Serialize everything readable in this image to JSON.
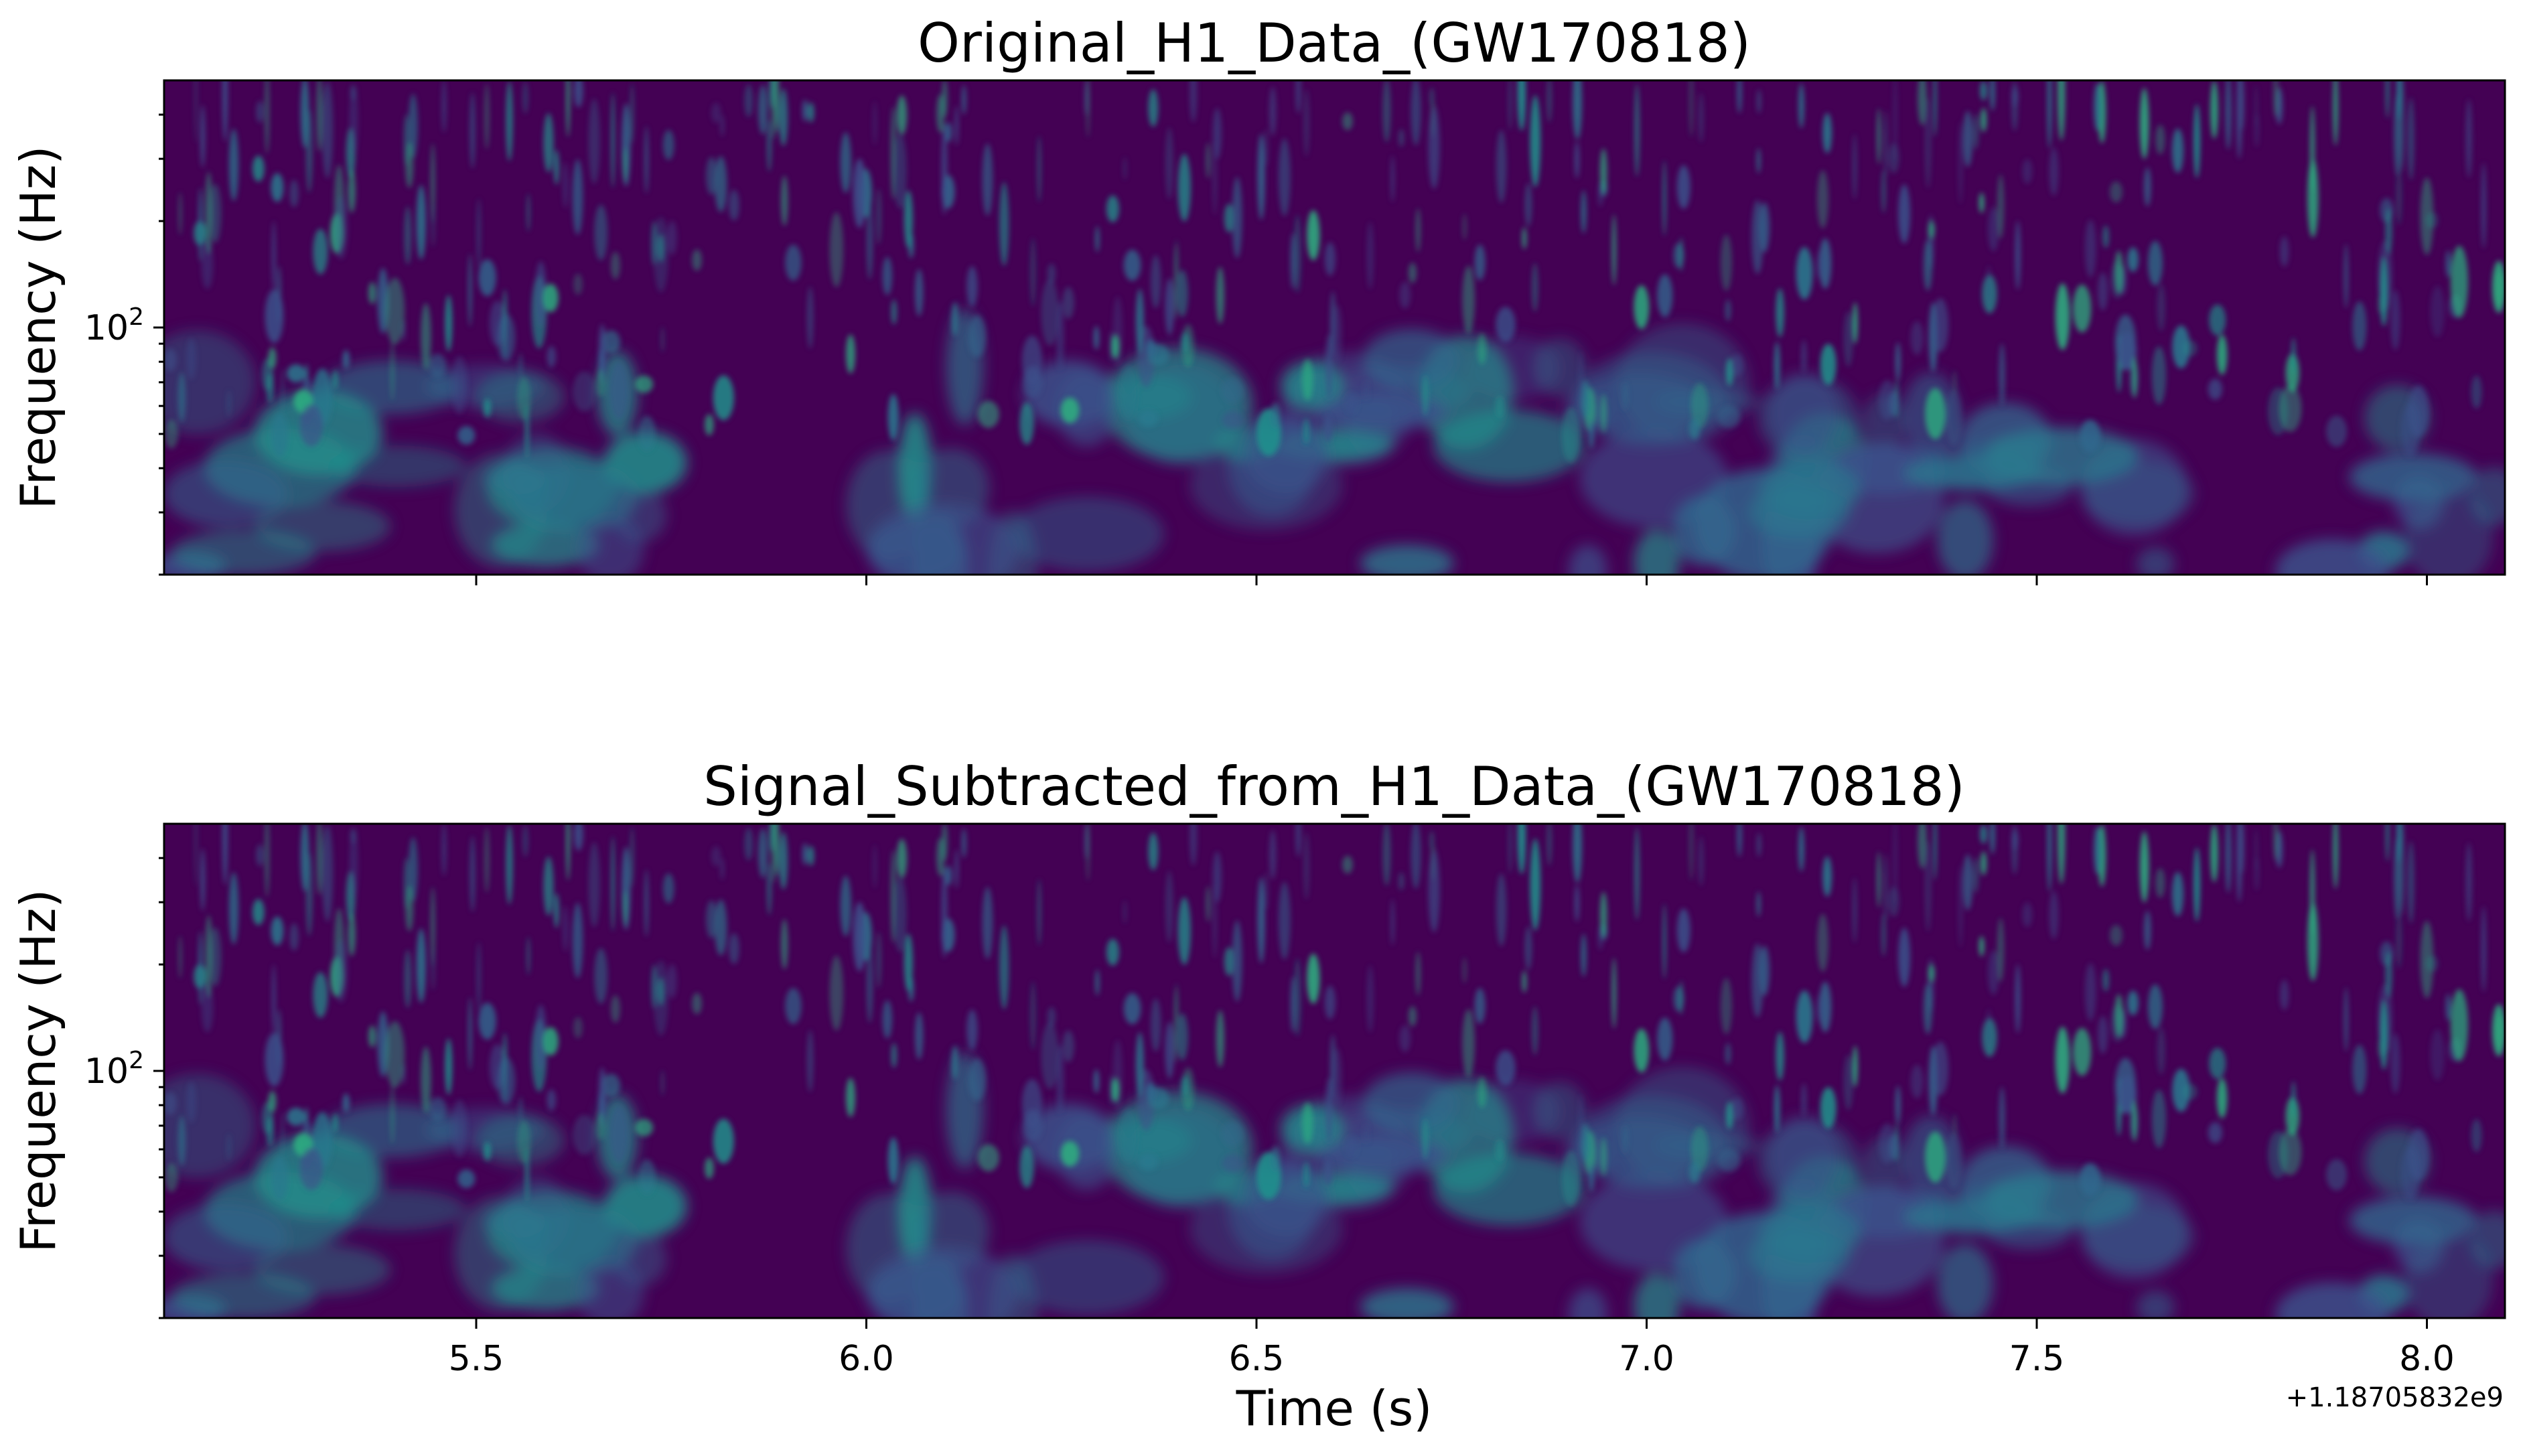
{
  "chart_data": [
    {
      "type": "heatmap",
      "title": "Original_H1_Data_(GW170818)",
      "xlabel": "",
      "ylabel": "Frequency (Hz)",
      "xlim": [
        5.1,
        8.1
      ],
      "ylim": [
        20,
        500
      ],
      "yscale": "log",
      "x_ticks": [
        5.5,
        6.0,
        6.5,
        7.0,
        7.5,
        8.0
      ],
      "x_tick_labels": [],
      "y_major_ticks": [
        100
      ],
      "y_tick_labels": [
        "10",
        "2"
      ],
      "y_minor_ticks": [
        20,
        30,
        40,
        50,
        60,
        70,
        80,
        90,
        200,
        300,
        400
      ],
      "colormap": "viridis",
      "grid": false
    },
    {
      "type": "heatmap",
      "title": "Signal_Subtracted_from_H1_Data_(GW170818)",
      "xlabel": "Time (s)",
      "ylabel": "Frequency (Hz)",
      "xlim": [
        5.1,
        8.1
      ],
      "ylim": [
        20,
        500
      ],
      "yscale": "log",
      "x_ticks": [
        5.5,
        6.0,
        6.5,
        7.0,
        7.5,
        8.0
      ],
      "x_tick_labels": [
        "5.5",
        "6.0",
        "6.5",
        "7.0",
        "7.5",
        "8.0"
      ],
      "x_offset_label": "+1.18705832e9",
      "y_major_ticks": [
        100
      ],
      "y_tick_labels": [
        "10",
        "2"
      ],
      "y_minor_ticks": [
        20,
        30,
        40,
        50,
        60,
        70,
        80,
        90,
        200,
        300,
        400
      ],
      "colormap": "viridis",
      "grid": false
    }
  ],
  "colors": {
    "background_low": "#440154",
    "mid": "#3b528b",
    "high": "#21918c",
    "peak": "#2cb07f"
  }
}
